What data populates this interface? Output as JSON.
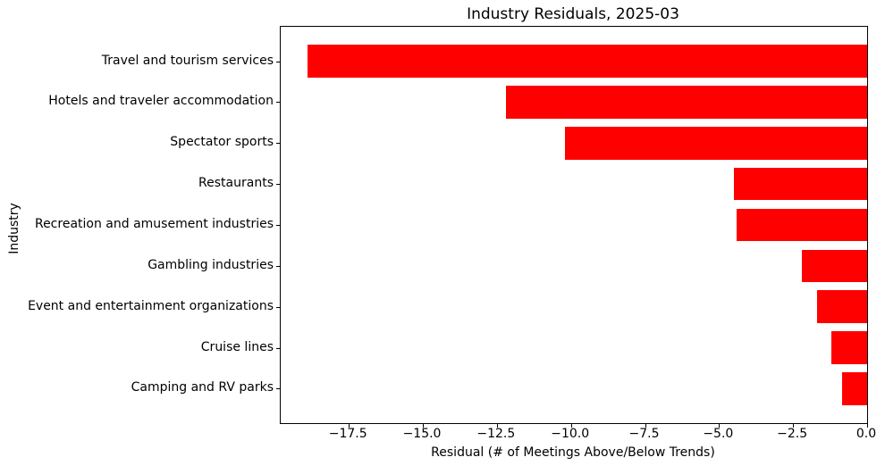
{
  "chart_data": {
    "type": "bar",
    "orientation": "horizontal",
    "title": "Industry Residuals, 2025-03",
    "xlabel": "Residual (# of Meetings Above/Below Trends)",
    "ylabel": "Industry",
    "categories": [
      "Travel and tourism services",
      "Hotels and traveler accommodation",
      "Spectator sports",
      "Restaurants",
      "Recreation and amusement industries",
      "Gambling industries",
      "Event and entertainment organizations",
      "Cruise lines",
      "Camping and RV parks"
    ],
    "values": [
      -18.9,
      -12.2,
      -10.2,
      -4.5,
      -4.4,
      -2.2,
      -1.7,
      -1.2,
      -0.85
    ],
    "xlim": [
      -19.8,
      0
    ],
    "xticks": [
      -17.5,
      -15.0,
      -12.5,
      -10.0,
      -7.5,
      -5.0,
      -2.5,
      0.0
    ],
    "xtick_labels": [
      "−17.5",
      "−15.0",
      "−12.5",
      "−10.0",
      "−7.5",
      "−5.0",
      "−2.5",
      "0.0"
    ],
    "bar_color": "#ff0000",
    "spine_color": "#000000",
    "text_color": "#000000",
    "background": "#ffffff",
    "grid": false,
    "legend_position": "none"
  }
}
